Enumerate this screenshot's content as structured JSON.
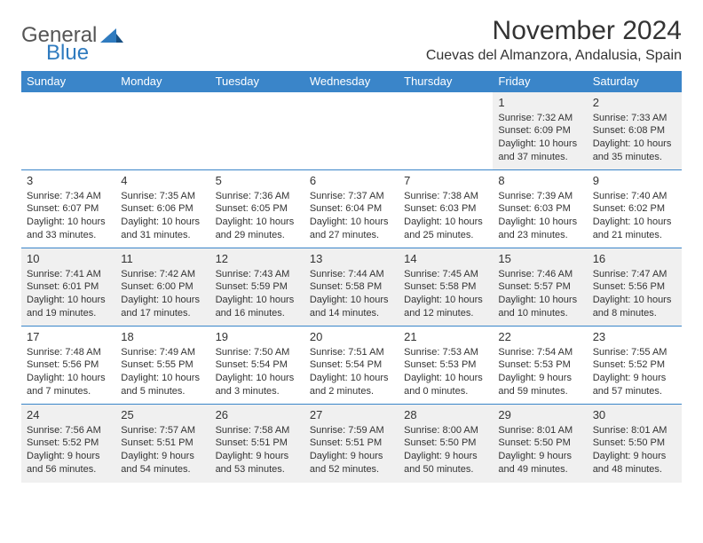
{
  "logo": {
    "general": "General",
    "blue": "Blue"
  },
  "title": "November 2024",
  "location": "Cuevas del Almanzora, Andalusia, Spain",
  "colors": {
    "header_bg": "#3a85c9",
    "header_fg": "#ffffff",
    "row_alt_bg": "#f0f0f0",
    "border": "#3a85c9",
    "logo_blue": "#2f7bbf",
    "logo_gray": "#555555",
    "text": "#333333"
  },
  "weekdays": [
    "Sunday",
    "Monday",
    "Tuesday",
    "Wednesday",
    "Thursday",
    "Friday",
    "Saturday"
  ],
  "weeks": [
    [
      null,
      null,
      null,
      null,
      null,
      {
        "n": "1",
        "sr": "7:32 AM",
        "ss": "6:09 PM",
        "dl": "10 hours and 37 minutes."
      },
      {
        "n": "2",
        "sr": "7:33 AM",
        "ss": "6:08 PM",
        "dl": "10 hours and 35 minutes."
      }
    ],
    [
      {
        "n": "3",
        "sr": "7:34 AM",
        "ss": "6:07 PM",
        "dl": "10 hours and 33 minutes."
      },
      {
        "n": "4",
        "sr": "7:35 AM",
        "ss": "6:06 PM",
        "dl": "10 hours and 31 minutes."
      },
      {
        "n": "5",
        "sr": "7:36 AM",
        "ss": "6:05 PM",
        "dl": "10 hours and 29 minutes."
      },
      {
        "n": "6",
        "sr": "7:37 AM",
        "ss": "6:04 PM",
        "dl": "10 hours and 27 minutes."
      },
      {
        "n": "7",
        "sr": "7:38 AM",
        "ss": "6:03 PM",
        "dl": "10 hours and 25 minutes."
      },
      {
        "n": "8",
        "sr": "7:39 AM",
        "ss": "6:03 PM",
        "dl": "10 hours and 23 minutes."
      },
      {
        "n": "9",
        "sr": "7:40 AM",
        "ss": "6:02 PM",
        "dl": "10 hours and 21 minutes."
      }
    ],
    [
      {
        "n": "10",
        "sr": "7:41 AM",
        "ss": "6:01 PM",
        "dl": "10 hours and 19 minutes."
      },
      {
        "n": "11",
        "sr": "7:42 AM",
        "ss": "6:00 PM",
        "dl": "10 hours and 17 minutes."
      },
      {
        "n": "12",
        "sr": "7:43 AM",
        "ss": "5:59 PM",
        "dl": "10 hours and 16 minutes."
      },
      {
        "n": "13",
        "sr": "7:44 AM",
        "ss": "5:58 PM",
        "dl": "10 hours and 14 minutes."
      },
      {
        "n": "14",
        "sr": "7:45 AM",
        "ss": "5:58 PM",
        "dl": "10 hours and 12 minutes."
      },
      {
        "n": "15",
        "sr": "7:46 AM",
        "ss": "5:57 PM",
        "dl": "10 hours and 10 minutes."
      },
      {
        "n": "16",
        "sr": "7:47 AM",
        "ss": "5:56 PM",
        "dl": "10 hours and 8 minutes."
      }
    ],
    [
      {
        "n": "17",
        "sr": "7:48 AM",
        "ss": "5:56 PM",
        "dl": "10 hours and 7 minutes."
      },
      {
        "n": "18",
        "sr": "7:49 AM",
        "ss": "5:55 PM",
        "dl": "10 hours and 5 minutes."
      },
      {
        "n": "19",
        "sr": "7:50 AM",
        "ss": "5:54 PM",
        "dl": "10 hours and 3 minutes."
      },
      {
        "n": "20",
        "sr": "7:51 AM",
        "ss": "5:54 PM",
        "dl": "10 hours and 2 minutes."
      },
      {
        "n": "21",
        "sr": "7:53 AM",
        "ss": "5:53 PM",
        "dl": "10 hours and 0 minutes."
      },
      {
        "n": "22",
        "sr": "7:54 AM",
        "ss": "5:53 PM",
        "dl": "9 hours and 59 minutes."
      },
      {
        "n": "23",
        "sr": "7:55 AM",
        "ss": "5:52 PM",
        "dl": "9 hours and 57 minutes."
      }
    ],
    [
      {
        "n": "24",
        "sr": "7:56 AM",
        "ss": "5:52 PM",
        "dl": "9 hours and 56 minutes."
      },
      {
        "n": "25",
        "sr": "7:57 AM",
        "ss": "5:51 PM",
        "dl": "9 hours and 54 minutes."
      },
      {
        "n": "26",
        "sr": "7:58 AM",
        "ss": "5:51 PM",
        "dl": "9 hours and 53 minutes."
      },
      {
        "n": "27",
        "sr": "7:59 AM",
        "ss": "5:51 PM",
        "dl": "9 hours and 52 minutes."
      },
      {
        "n": "28",
        "sr": "8:00 AM",
        "ss": "5:50 PM",
        "dl": "9 hours and 50 minutes."
      },
      {
        "n": "29",
        "sr": "8:01 AM",
        "ss": "5:50 PM",
        "dl": "9 hours and 49 minutes."
      },
      {
        "n": "30",
        "sr": "8:01 AM",
        "ss": "5:50 PM",
        "dl": "9 hours and 48 minutes."
      }
    ]
  ],
  "labels": {
    "sunrise": "Sunrise:",
    "sunset": "Sunset:",
    "daylight": "Daylight:"
  }
}
